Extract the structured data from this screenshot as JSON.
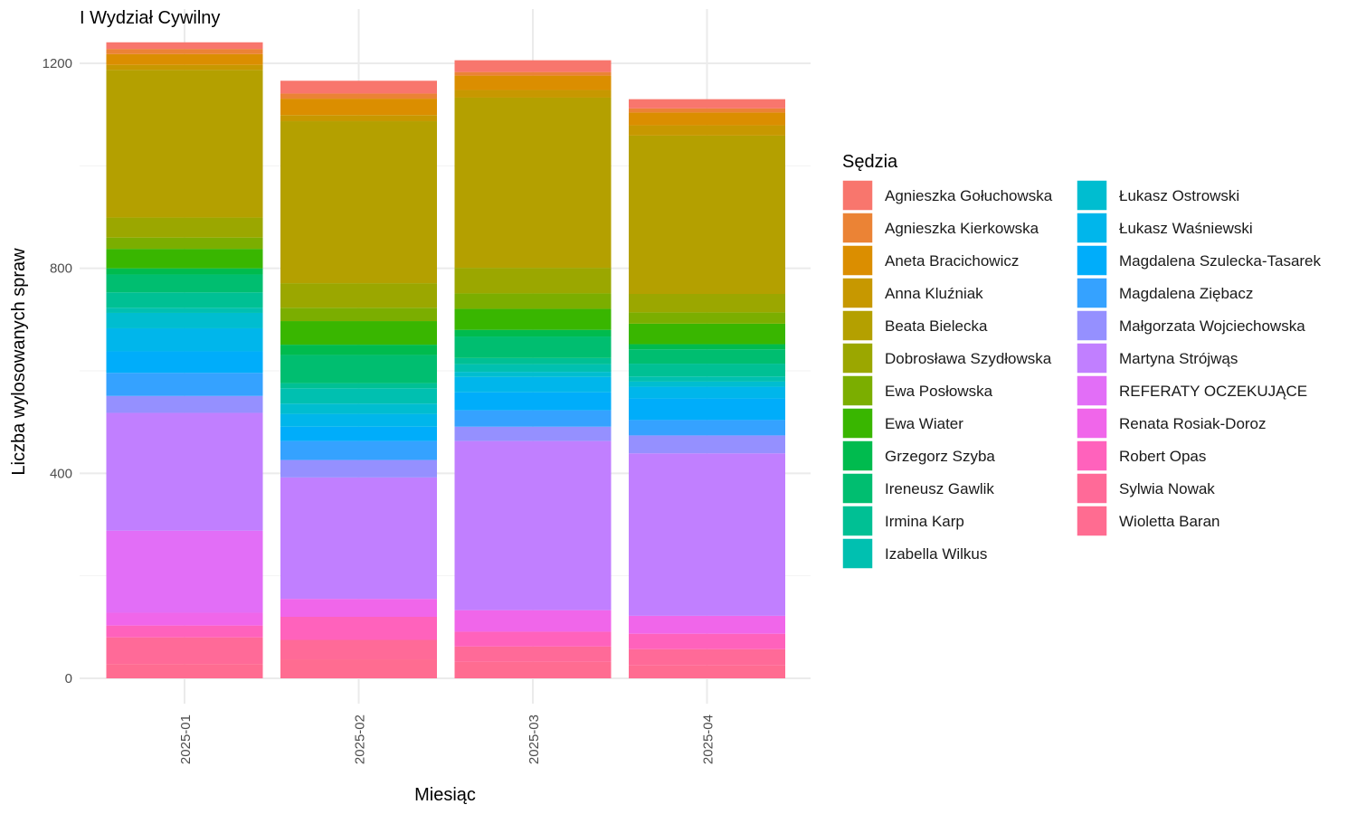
{
  "chart_data": {
    "type": "bar",
    "stacked": true,
    "title": "I Wydział Cywilny",
    "xlabel": "Miesiąc",
    "ylabel": "Liczba wylosowanych spraw",
    "ylim": [
      0,
      1260
    ],
    "y_ticks": [
      0,
      400,
      800,
      1200
    ],
    "grid": true,
    "legend_title": "Sędzia",
    "legend_position": "right",
    "categories": [
      "2025-01",
      "2025-02",
      "2025-03",
      "2025-04"
    ],
    "series": [
      {
        "name": "Agnieszka Gołuchowska",
        "color": "#F8766D",
        "values": [
          13,
          25,
          23,
          18
        ]
      },
      {
        "name": "Agnieszka Kierkowska",
        "color": "#EB8335",
        "values": [
          10,
          10,
          7,
          8
        ]
      },
      {
        "name": "Aneta Bracichowicz",
        "color": "#DB8E00",
        "values": [
          21,
          32,
          28,
          25
        ]
      },
      {
        "name": "Anna Kluźniak",
        "color": "#C79800",
        "values": [
          10,
          12,
          15,
          20
        ]
      },
      {
        "name": "Beata Bielecka",
        "color": "#B4A000",
        "values": [
          288,
          316,
          332,
          309
        ]
      },
      {
        "name": "Dobrosława Szydłowska",
        "color": "#9BA700",
        "values": [
          39,
          48,
          50,
          36
        ]
      },
      {
        "name": "Ewa Posłowska",
        "color": "#7BAE00",
        "values": [
          22,
          26,
          30,
          22
        ]
      },
      {
        "name": "Ewa Wiater",
        "color": "#39B600",
        "values": [
          38,
          46,
          41,
          40
        ]
      },
      {
        "name": "Grzegorz Szyba",
        "color": "#00BB4E",
        "values": [
          12,
          20,
          13,
          10
        ]
      },
      {
        "name": "Ireneusz Gawlik",
        "color": "#00BE70",
        "values": [
          35,
          55,
          42,
          28
        ]
      },
      {
        "name": "Irmina Karp",
        "color": "#00C094",
        "values": [
          30,
          10,
          12,
          25
        ]
      },
      {
        "name": "Izabella Wilkus",
        "color": "#00C0B0",
        "values": [
          10,
          30,
          15,
          10
        ]
      },
      {
        "name": "Łukasz Ostrowski",
        "color": "#00BDD0",
        "values": [
          30,
          20,
          10,
          10
        ]
      },
      {
        "name": "Łukasz Waśniewski",
        "color": "#00B6EB",
        "values": [
          45,
          25,
          30,
          23
        ]
      },
      {
        "name": "Magdalena Szulecka-Tasarek",
        "color": "#00ADFA",
        "values": [
          42,
          28,
          35,
          42
        ]
      },
      {
        "name": "Magdalena Ziębacz",
        "color": "#35A2FF",
        "values": [
          45,
          37,
          32,
          30
        ]
      },
      {
        "name": "Małgorzata Wojciechowska",
        "color": "#9590FF",
        "values": [
          33,
          34,
          28,
          35
        ]
      },
      {
        "name": "Martyna Strójwąs",
        "color": "#C17FFF",
        "values": [
          230,
          237,
          330,
          317
        ]
      },
      {
        "name": "REFERATY OCZEKUJĄCE",
        "color": "#E26EF7",
        "values": [
          160,
          0,
          0,
          0
        ]
      },
      {
        "name": "Renata Rosiak-Doroz",
        "color": "#F066EA",
        "values": [
          25,
          35,
          42,
          35
        ]
      },
      {
        "name": "Robert Opas",
        "color": "#FF62BC",
        "values": [
          23,
          45,
          29,
          30
        ]
      },
      {
        "name": "Sylwia Nowak",
        "color": "#FF6A98",
        "values": [
          52,
          38,
          30,
          32
        ]
      },
      {
        "name": "Wioletta Baran",
        "color": "#FF6C91",
        "values": [
          28,
          37,
          32,
          25
        ]
      }
    ]
  }
}
